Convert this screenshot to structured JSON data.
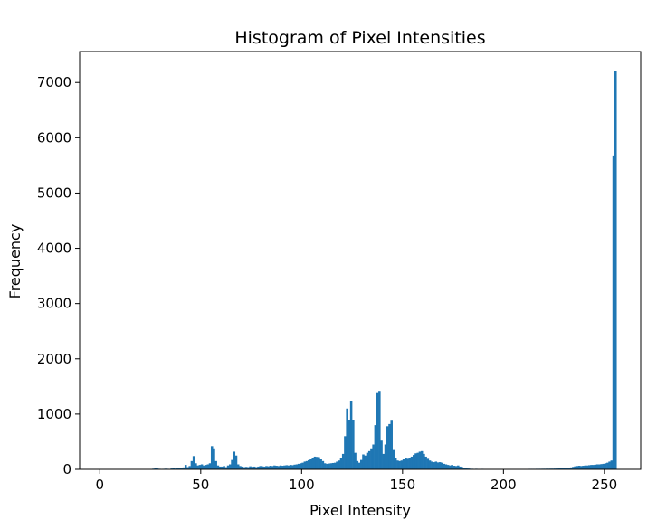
{
  "chart_data": {
    "type": "bar",
    "title": "Histogram of Pixel Intensities",
    "xlabel": "Pixel Intensity",
    "ylabel": "Frequency",
    "xlim": [
      -10,
      268
    ],
    "ylim": [
      0,
      7560
    ],
    "xticks": [
      0,
      50,
      100,
      150,
      200,
      250
    ],
    "yticks": [
      0,
      1000,
      2000,
      3000,
      4000,
      5000,
      6000,
      7000
    ],
    "grid": false,
    "bar_color": "#1f77b4",
    "bin_width": 1,
    "bins": [
      {
        "x": 0,
        "y": 5
      },
      {
        "x": 1,
        "y": 3
      },
      {
        "x": 2,
        "y": 3
      },
      {
        "x": 3,
        "y": 2
      },
      {
        "x": 4,
        "y": 2
      },
      {
        "x": 5,
        "y": 2
      },
      {
        "x": 6,
        "y": 2
      },
      {
        "x": 7,
        "y": 2
      },
      {
        "x": 8,
        "y": 2
      },
      {
        "x": 9,
        "y": 2
      },
      {
        "x": 10,
        "y": 2
      },
      {
        "x": 11,
        "y": 2
      },
      {
        "x": 12,
        "y": 2
      },
      {
        "x": 13,
        "y": 2
      },
      {
        "x": 14,
        "y": 2
      },
      {
        "x": 15,
        "y": 2
      },
      {
        "x": 16,
        "y": 3
      },
      {
        "x": 17,
        "y": 3
      },
      {
        "x": 18,
        "y": 3
      },
      {
        "x": 19,
        "y": 3
      },
      {
        "x": 20,
        "y": 4
      },
      {
        "x": 21,
        "y": 4
      },
      {
        "x": 22,
        "y": 4
      },
      {
        "x": 23,
        "y": 5
      },
      {
        "x": 24,
        "y": 6
      },
      {
        "x": 25,
        "y": 8
      },
      {
        "x": 26,
        "y": 12
      },
      {
        "x": 27,
        "y": 18
      },
      {
        "x": 28,
        "y": 15
      },
      {
        "x": 29,
        "y": 10
      },
      {
        "x": 30,
        "y": 8
      },
      {
        "x": 31,
        "y": 9
      },
      {
        "x": 32,
        "y": 12
      },
      {
        "x": 33,
        "y": 10
      },
      {
        "x": 34,
        "y": 8
      },
      {
        "x": 35,
        "y": 15
      },
      {
        "x": 36,
        "y": 18
      },
      {
        "x": 37,
        "y": 14
      },
      {
        "x": 38,
        "y": 20
      },
      {
        "x": 39,
        "y": 25
      },
      {
        "x": 40,
        "y": 30
      },
      {
        "x": 41,
        "y": 35
      },
      {
        "x": 42,
        "y": 80
      },
      {
        "x": 43,
        "y": 40
      },
      {
        "x": 44,
        "y": 60
      },
      {
        "x": 45,
        "y": 150
      },
      {
        "x": 46,
        "y": 240
      },
      {
        "x": 47,
        "y": 110
      },
      {
        "x": 48,
        "y": 70
      },
      {
        "x": 49,
        "y": 80
      },
      {
        "x": 50,
        "y": 90
      },
      {
        "x": 51,
        "y": 70
      },
      {
        "x": 52,
        "y": 80
      },
      {
        "x": 53,
        "y": 90
      },
      {
        "x": 54,
        "y": 110
      },
      {
        "x": 55,
        "y": 420
      },
      {
        "x": 56,
        "y": 380
      },
      {
        "x": 57,
        "y": 150
      },
      {
        "x": 58,
        "y": 70
      },
      {
        "x": 59,
        "y": 50
      },
      {
        "x": 60,
        "y": 50
      },
      {
        "x": 61,
        "y": 60
      },
      {
        "x": 62,
        "y": 40
      },
      {
        "x": 63,
        "y": 70
      },
      {
        "x": 64,
        "y": 90
      },
      {
        "x": 65,
        "y": 170
      },
      {
        "x": 66,
        "y": 320
      },
      {
        "x": 67,
        "y": 250
      },
      {
        "x": 68,
        "y": 90
      },
      {
        "x": 69,
        "y": 60
      },
      {
        "x": 70,
        "y": 50
      },
      {
        "x": 71,
        "y": 40
      },
      {
        "x": 72,
        "y": 45
      },
      {
        "x": 73,
        "y": 40
      },
      {
        "x": 74,
        "y": 55
      },
      {
        "x": 75,
        "y": 45
      },
      {
        "x": 76,
        "y": 50
      },
      {
        "x": 77,
        "y": 40
      },
      {
        "x": 78,
        "y": 50
      },
      {
        "x": 79,
        "y": 60
      },
      {
        "x": 80,
        "y": 55
      },
      {
        "x": 81,
        "y": 50
      },
      {
        "x": 82,
        "y": 60
      },
      {
        "x": 83,
        "y": 55
      },
      {
        "x": 84,
        "y": 65
      },
      {
        "x": 85,
        "y": 60
      },
      {
        "x": 86,
        "y": 70
      },
      {
        "x": 87,
        "y": 65
      },
      {
        "x": 88,
        "y": 60
      },
      {
        "x": 89,
        "y": 70
      },
      {
        "x": 90,
        "y": 65
      },
      {
        "x": 91,
        "y": 70
      },
      {
        "x": 92,
        "y": 75
      },
      {
        "x": 93,
        "y": 70
      },
      {
        "x": 94,
        "y": 80
      },
      {
        "x": 95,
        "y": 75
      },
      {
        "x": 96,
        "y": 85
      },
      {
        "x": 97,
        "y": 90
      },
      {
        "x": 98,
        "y": 100
      },
      {
        "x": 99,
        "y": 110
      },
      {
        "x": 100,
        "y": 120
      },
      {
        "x": 101,
        "y": 140
      },
      {
        "x": 102,
        "y": 150
      },
      {
        "x": 103,
        "y": 165
      },
      {
        "x": 104,
        "y": 180
      },
      {
        "x": 105,
        "y": 210
      },
      {
        "x": 106,
        "y": 230
      },
      {
        "x": 107,
        "y": 225
      },
      {
        "x": 108,
        "y": 220
      },
      {
        "x": 109,
        "y": 180
      },
      {
        "x": 110,
        "y": 150
      },
      {
        "x": 111,
        "y": 110
      },
      {
        "x": 112,
        "y": 100
      },
      {
        "x": 113,
        "y": 105
      },
      {
        "x": 114,
        "y": 110
      },
      {
        "x": 115,
        "y": 115
      },
      {
        "x": 116,
        "y": 120
      },
      {
        "x": 117,
        "y": 140
      },
      {
        "x": 118,
        "y": 160
      },
      {
        "x": 119,
        "y": 200
      },
      {
        "x": 120,
        "y": 280
      },
      {
        "x": 121,
        "y": 600
      },
      {
        "x": 122,
        "y": 1100
      },
      {
        "x": 123,
        "y": 900
      },
      {
        "x": 124,
        "y": 1230
      },
      {
        "x": 125,
        "y": 900
      },
      {
        "x": 126,
        "y": 300
      },
      {
        "x": 127,
        "y": 150
      },
      {
        "x": 128,
        "y": 120
      },
      {
        "x": 129,
        "y": 170
      },
      {
        "x": 130,
        "y": 270
      },
      {
        "x": 131,
        "y": 250
      },
      {
        "x": 132,
        "y": 300
      },
      {
        "x": 133,
        "y": 330
      },
      {
        "x": 134,
        "y": 380
      },
      {
        "x": 135,
        "y": 450
      },
      {
        "x": 136,
        "y": 800
      },
      {
        "x": 137,
        "y": 1380
      },
      {
        "x": 138,
        "y": 1420
      },
      {
        "x": 139,
        "y": 520
      },
      {
        "x": 140,
        "y": 280
      },
      {
        "x": 141,
        "y": 450
      },
      {
        "x": 142,
        "y": 780
      },
      {
        "x": 143,
        "y": 820
      },
      {
        "x": 144,
        "y": 880
      },
      {
        "x": 145,
        "y": 350
      },
      {
        "x": 146,
        "y": 200
      },
      {
        "x": 147,
        "y": 160
      },
      {
        "x": 148,
        "y": 150
      },
      {
        "x": 149,
        "y": 160
      },
      {
        "x": 150,
        "y": 180
      },
      {
        "x": 151,
        "y": 200
      },
      {
        "x": 152,
        "y": 190
      },
      {
        "x": 153,
        "y": 210
      },
      {
        "x": 154,
        "y": 230
      },
      {
        "x": 155,
        "y": 260
      },
      {
        "x": 156,
        "y": 290
      },
      {
        "x": 157,
        "y": 300
      },
      {
        "x": 158,
        "y": 320
      },
      {
        "x": 159,
        "y": 330
      },
      {
        "x": 160,
        "y": 280
      },
      {
        "x": 161,
        "y": 230
      },
      {
        "x": 162,
        "y": 190
      },
      {
        "x": 163,
        "y": 160
      },
      {
        "x": 164,
        "y": 140
      },
      {
        "x": 165,
        "y": 130
      },
      {
        "x": 166,
        "y": 140
      },
      {
        "x": 167,
        "y": 125
      },
      {
        "x": 168,
        "y": 130
      },
      {
        "x": 169,
        "y": 120
      },
      {
        "x": 170,
        "y": 100
      },
      {
        "x": 171,
        "y": 90
      },
      {
        "x": 172,
        "y": 80
      },
      {
        "x": 173,
        "y": 70
      },
      {
        "x": 174,
        "y": 80
      },
      {
        "x": 175,
        "y": 65
      },
      {
        "x": 176,
        "y": 60
      },
      {
        "x": 177,
        "y": 70
      },
      {
        "x": 178,
        "y": 50
      },
      {
        "x": 179,
        "y": 40
      },
      {
        "x": 180,
        "y": 30
      },
      {
        "x": 181,
        "y": 20
      },
      {
        "x": 182,
        "y": 15
      },
      {
        "x": 183,
        "y": 12
      },
      {
        "x": 184,
        "y": 10
      },
      {
        "x": 185,
        "y": 8
      },
      {
        "x": 186,
        "y": 10
      },
      {
        "x": 187,
        "y": 8
      },
      {
        "x": 188,
        "y": 8
      },
      {
        "x": 189,
        "y": 9
      },
      {
        "x": 190,
        "y": 8
      },
      {
        "x": 191,
        "y": 8
      },
      {
        "x": 192,
        "y": 8
      },
      {
        "x": 193,
        "y": 7
      },
      {
        "x": 194,
        "y": 7
      },
      {
        "x": 195,
        "y": 7
      },
      {
        "x": 196,
        "y": 7
      },
      {
        "x": 197,
        "y": 7
      },
      {
        "x": 198,
        "y": 8
      },
      {
        "x": 199,
        "y": 8
      },
      {
        "x": 200,
        "y": 8
      },
      {
        "x": 201,
        "y": 7
      },
      {
        "x": 202,
        "y": 7
      },
      {
        "x": 203,
        "y": 7
      },
      {
        "x": 204,
        "y": 7
      },
      {
        "x": 205,
        "y": 8
      },
      {
        "x": 206,
        "y": 8
      },
      {
        "x": 207,
        "y": 8
      },
      {
        "x": 208,
        "y": 8
      },
      {
        "x": 209,
        "y": 8
      },
      {
        "x": 210,
        "y": 8
      },
      {
        "x": 211,
        "y": 8
      },
      {
        "x": 212,
        "y": 9
      },
      {
        "x": 213,
        "y": 9
      },
      {
        "x": 214,
        "y": 9
      },
      {
        "x": 215,
        "y": 9
      },
      {
        "x": 216,
        "y": 10
      },
      {
        "x": 217,
        "y": 10
      },
      {
        "x": 218,
        "y": 10
      },
      {
        "x": 219,
        "y": 11
      },
      {
        "x": 220,
        "y": 11
      },
      {
        "x": 221,
        "y": 12
      },
      {
        "x": 222,
        "y": 12
      },
      {
        "x": 223,
        "y": 13
      },
      {
        "x": 224,
        "y": 13
      },
      {
        "x": 225,
        "y": 14
      },
      {
        "x": 226,
        "y": 15
      },
      {
        "x": 227,
        "y": 16
      },
      {
        "x": 228,
        "y": 18
      },
      {
        "x": 229,
        "y": 20
      },
      {
        "x": 230,
        "y": 22
      },
      {
        "x": 231,
        "y": 25
      },
      {
        "x": 232,
        "y": 30
      },
      {
        "x": 233,
        "y": 35
      },
      {
        "x": 234,
        "y": 45
      },
      {
        "x": 235,
        "y": 55
      },
      {
        "x": 236,
        "y": 60
      },
      {
        "x": 237,
        "y": 65
      },
      {
        "x": 238,
        "y": 60
      },
      {
        "x": 239,
        "y": 65
      },
      {
        "x": 240,
        "y": 70
      },
      {
        "x": 241,
        "y": 70
      },
      {
        "x": 242,
        "y": 75
      },
      {
        "x": 243,
        "y": 80
      },
      {
        "x": 244,
        "y": 80
      },
      {
        "x": 245,
        "y": 85
      },
      {
        "x": 246,
        "y": 90
      },
      {
        "x": 247,
        "y": 90
      },
      {
        "x": 248,
        "y": 95
      },
      {
        "x": 249,
        "y": 100
      },
      {
        "x": 250,
        "y": 110
      },
      {
        "x": 251,
        "y": 120
      },
      {
        "x": 252,
        "y": 140
      },
      {
        "x": 253,
        "y": 160
      },
      {
        "x": 254,
        "y": 5680
      },
      {
        "x": 255,
        "y": 7200
      }
    ]
  }
}
